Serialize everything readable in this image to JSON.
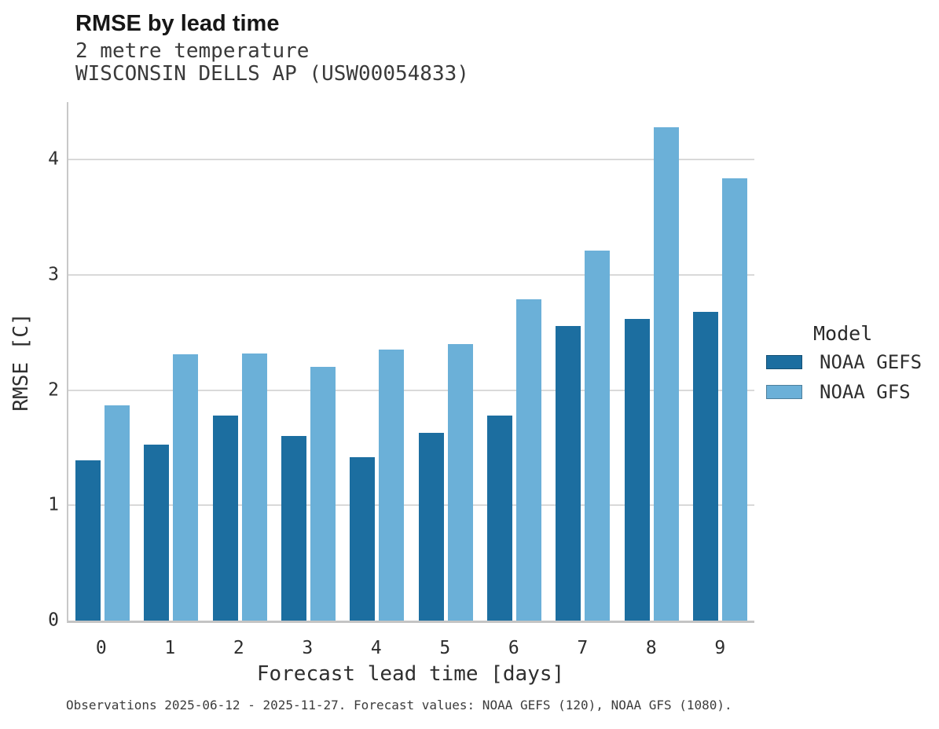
{
  "header": {
    "title": "RMSE by lead time",
    "subtitle_line1": "2 metre temperature",
    "subtitle_line2": "WISCONSIN DELLS AP (USW00054833)"
  },
  "chart_data": {
    "type": "bar",
    "title": "RMSE by lead time",
    "subtitle": [
      "2 metre temperature",
      "WISCONSIN DELLS AP (USW00054833)"
    ],
    "xlabel": "Forecast lead time [days]",
    "ylabel": "RMSE [C]",
    "categories": [
      "0",
      "1",
      "2",
      "3",
      "4",
      "5",
      "6",
      "7",
      "8",
      "9"
    ],
    "series": [
      {
        "name": "NOAA GEFS",
        "color": "#1c6ea0",
        "values": [
          1.39,
          1.53,
          1.78,
          1.6,
          1.42,
          1.63,
          1.78,
          2.56,
          2.62,
          2.68
        ]
      },
      {
        "name": "NOAA GFS",
        "color": "#6bb0d8",
        "values": [
          1.87,
          2.31,
          2.32,
          2.2,
          2.35,
          2.4,
          2.79,
          3.21,
          4.28,
          3.84
        ]
      }
    ],
    "ylim": [
      0,
      4.5
    ],
    "yticks": [
      0,
      1,
      2,
      3,
      4
    ],
    "grid": "horizontal",
    "legend": {
      "title": "Model",
      "position": "right"
    },
    "caption": "Observations 2025-06-12 - 2025-11-27. Forecast values: NOAA GEFS (120), NOAA GFS (1080)."
  }
}
